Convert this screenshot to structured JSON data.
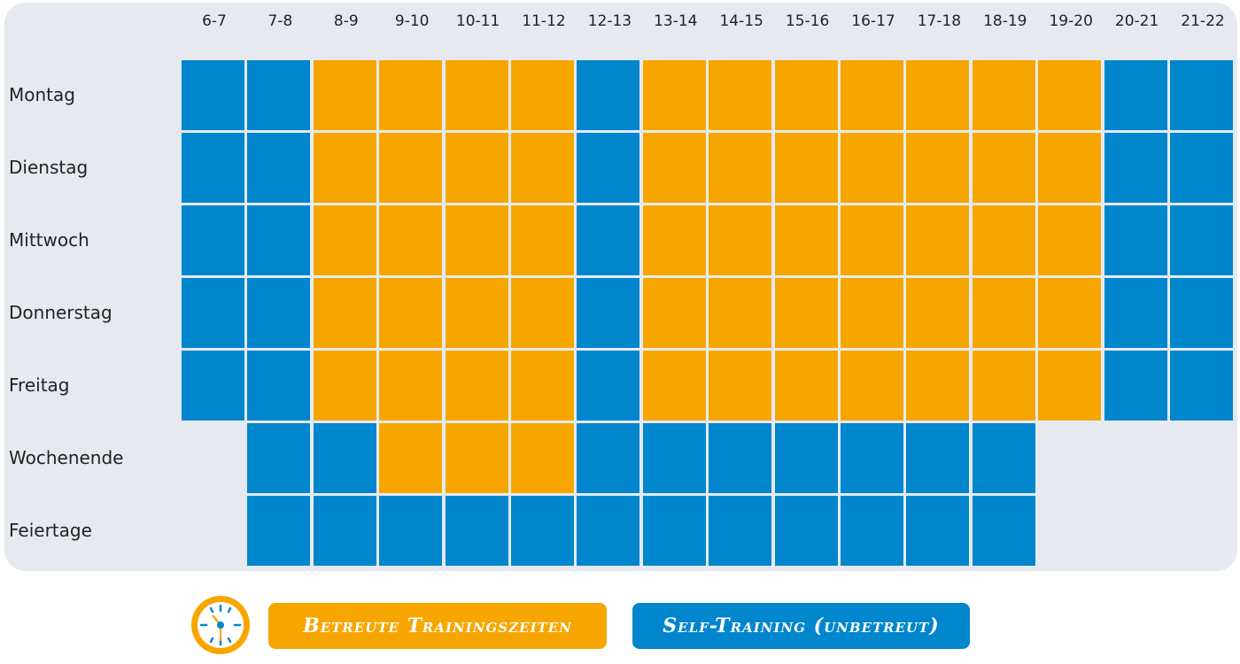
{
  "chart_data": {
    "type": "heatmap",
    "columns": [
      "6-7",
      "7-8",
      "8-9",
      "9-10",
      "10-11",
      "11-12",
      "12-13",
      "13-14",
      "14-15",
      "15-16",
      "16-17",
      "17-18",
      "18-19",
      "19-20",
      "20-21",
      "21-22"
    ],
    "rows": [
      {
        "label": "Montag",
        "values": [
          "S",
          "S",
          "B",
          "B",
          "B",
          "B",
          "S",
          "B",
          "B",
          "B",
          "B",
          "B",
          "B",
          "B",
          "S",
          "S"
        ]
      },
      {
        "label": "Dienstag",
        "values": [
          "S",
          "S",
          "B",
          "B",
          "B",
          "B",
          "S",
          "B",
          "B",
          "B",
          "B",
          "B",
          "B",
          "B",
          "S",
          "S"
        ]
      },
      {
        "label": "Mittwoch",
        "values": [
          "S",
          "S",
          "B",
          "B",
          "B",
          "B",
          "S",
          "B",
          "B",
          "B",
          "B",
          "B",
          "B",
          "B",
          "S",
          "S"
        ]
      },
      {
        "label": "Donnerstag",
        "values": [
          "S",
          "S",
          "B",
          "B",
          "B",
          "B",
          "S",
          "B",
          "B",
          "B",
          "B",
          "B",
          "B",
          "B",
          "S",
          "S"
        ]
      },
      {
        "label": "Freitag",
        "values": [
          "S",
          "S",
          "B",
          "B",
          "B",
          "B",
          "S",
          "B",
          "B",
          "B",
          "B",
          "B",
          "B",
          "B",
          "S",
          "S"
        ]
      },
      {
        "label": "Wochenende",
        "values": [
          null,
          "S",
          "S",
          "B",
          "B",
          "B",
          "S",
          "S",
          "S",
          "S",
          "S",
          "S",
          "S",
          null,
          null,
          null
        ]
      },
      {
        "label": "Feiertage",
        "values": [
          null,
          "S",
          "S",
          "S",
          "S",
          "S",
          "S",
          "S",
          "S",
          "S",
          "S",
          "S",
          "S",
          null,
          null,
          null
        ]
      }
    ],
    "legend": [
      {
        "key": "B",
        "label": "Betreute Trainingszeiten",
        "color": "#f7a600"
      },
      {
        "key": "S",
        "label": "Self-Training (unbetreut)",
        "color": "#0086cd"
      }
    ],
    "legend_placement": "bottom"
  },
  "icons": {
    "legend_icon": "clock-icon"
  }
}
